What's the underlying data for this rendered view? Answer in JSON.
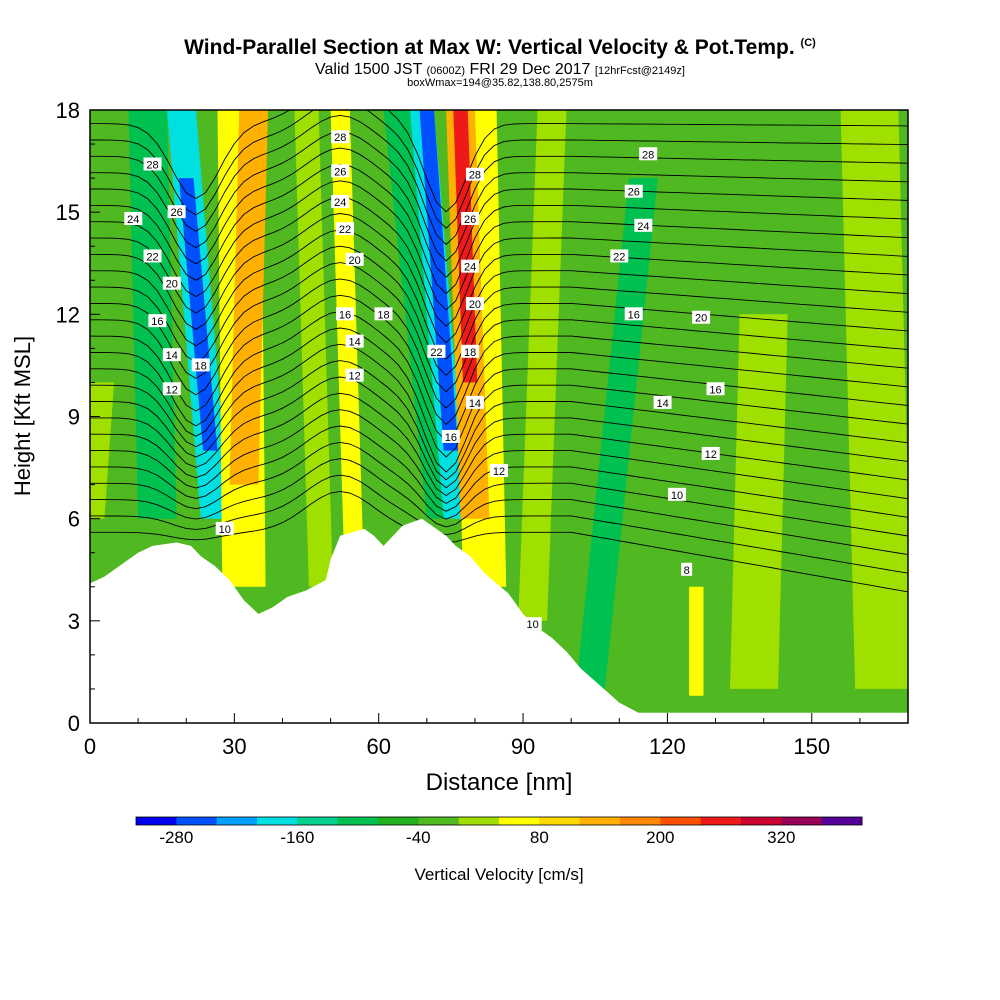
{
  "header": {
    "title_main": "Wind-Parallel Section at Max W: Vertical Velocity & Pot.Temp.",
    "title_tag": "(C)",
    "valid_prefix": "Valid 1500 JST",
    "valid_utc": "(0600Z)",
    "valid_date": "FRI 29 Dec 2017",
    "valid_fcst": "[12hrFcst@2149z]",
    "box_info": "boxWmax=194@35.82,138.80,2575m"
  },
  "chart_data": {
    "type": "contour cross-section",
    "xlabel": "Distance [nm]",
    "ylabel": "Height [Kft MSL]",
    "xlim": [
      0,
      170
    ],
    "ylim": [
      0,
      18
    ],
    "x_ticks": [
      0,
      30,
      60,
      90,
      120,
      150
    ],
    "y_ticks": [
      0,
      3,
      6,
      9,
      12,
      15,
      18
    ],
    "colorbar": {
      "label": "Vertical Velocity [cm/s]",
      "tick_labels": [
        "-280",
        "-160",
        "-40",
        "80",
        "200",
        "320"
      ],
      "tick_values": [
        -280,
        -160,
        -40,
        80,
        200,
        320
      ],
      "range": [
        -320,
        400
      ],
      "step": 40,
      "colors": [
        "#0000ee",
        "#0050ff",
        "#00a0ff",
        "#00e0e0",
        "#00d090",
        "#00c050",
        "#20b020",
        "#50b820",
        "#a0e000",
        "#ffff00",
        "#ffd800",
        "#ffb000",
        "#ff8800",
        "#ff5000",
        "#ee1a1a",
        "#cc0030",
        "#990055",
        "#550099"
      ]
    },
    "field_colors": {
      "strong_down": "#00e0e0",
      "down_core": "#0050ff",
      "weak_down": "#00c050",
      "neutral": "#50b820",
      "weak_up": "#a0e000",
      "up": "#ffff00",
      "strong_up": "#ffb000",
      "up_core": "#ee1a1a"
    },
    "terrain_profile": {
      "x": [
        0,
        3,
        5,
        8,
        10,
        13,
        18,
        21,
        23,
        26,
        29,
        32,
        35,
        38,
        41,
        45,
        49,
        50,
        52,
        57,
        59,
        61,
        65,
        69,
        71,
        74,
        76,
        79,
        82,
        87,
        90,
        93,
        96,
        99,
        102,
        106,
        110,
        114,
        170
      ],
      "y": [
        4.1,
        4.3,
        4.5,
        4.8,
        5.0,
        5.2,
        5.3,
        5.2,
        4.9,
        4.6,
        4.2,
        3.6,
        3.2,
        3.4,
        3.7,
        3.9,
        4.2,
        4.8,
        5.5,
        5.7,
        5.5,
        5.2,
        5.8,
        6.0,
        5.8,
        5.5,
        5.2,
        4.9,
        4.4,
        3.8,
        3.2,
        2.8,
        2.5,
        2.1,
        1.6,
        1.1,
        0.6,
        0.3,
        0.3
      ]
    },
    "theta_labels": [
      {
        "text": "28",
        "x": 13,
        "y": 16.4
      },
      {
        "text": "26",
        "x": 18,
        "y": 15.0
      },
      {
        "text": "24",
        "x": 9,
        "y": 14.8
      },
      {
        "text": "22",
        "x": 13,
        "y": 13.7
      },
      {
        "text": "20",
        "x": 17,
        "y": 12.9
      },
      {
        "text": "16",
        "x": 14,
        "y": 11.8
      },
      {
        "text": "14",
        "x": 17,
        "y": 10.8
      },
      {
        "text": "18",
        "x": 23,
        "y": 10.5
      },
      {
        "text": "12",
        "x": 17,
        "y": 9.8
      },
      {
        "text": "10",
        "x": 28,
        "y": 5.7
      },
      {
        "text": "28",
        "x": 52,
        "y": 17.2
      },
      {
        "text": "26",
        "x": 52,
        "y": 16.2
      },
      {
        "text": "24",
        "x": 52,
        "y": 15.3
      },
      {
        "text": "22",
        "x": 53,
        "y": 14.5
      },
      {
        "text": "20",
        "x": 55,
        "y": 13.6
      },
      {
        "text": "16",
        "x": 53,
        "y": 12.0
      },
      {
        "text": "18",
        "x": 61,
        "y": 12.0
      },
      {
        "text": "14",
        "x": 55,
        "y": 11.2
      },
      {
        "text": "12",
        "x": 55,
        "y": 10.2
      },
      {
        "text": "28",
        "x": 80,
        "y": 16.1
      },
      {
        "text": "26",
        "x": 79,
        "y": 14.8
      },
      {
        "text": "24",
        "x": 79,
        "y": 13.4
      },
      {
        "text": "20",
        "x": 80,
        "y": 12.3
      },
      {
        "text": "22",
        "x": 72,
        "y": 10.9
      },
      {
        "text": "18",
        "x": 79,
        "y": 10.9
      },
      {
        "text": "14",
        "x": 80,
        "y": 9.4
      },
      {
        "text": "16",
        "x": 75,
        "y": 8.4
      },
      {
        "text": "12",
        "x": 85,
        "y": 7.4
      },
      {
        "text": "10",
        "x": 92,
        "y": 2.9
      },
      {
        "text": "28",
        "x": 116,
        "y": 16.7
      },
      {
        "text": "26",
        "x": 113,
        "y": 15.6
      },
      {
        "text": "24",
        "x": 115,
        "y": 14.6
      },
      {
        "text": "22",
        "x": 110,
        "y": 13.7
      },
      {
        "text": "16",
        "x": 113,
        "y": 12.0
      },
      {
        "text": "20",
        "x": 127,
        "y": 11.9
      },
      {
        "text": "16",
        "x": 130,
        "y": 9.8
      },
      {
        "text": "14",
        "x": 119,
        "y": 9.4
      },
      {
        "text": "12",
        "x": 129,
        "y": 7.9
      },
      {
        "text": "10",
        "x": 122,
        "y": 6.7
      },
      {
        "text": "8",
        "x": 124,
        "y": 4.5
      }
    ]
  }
}
